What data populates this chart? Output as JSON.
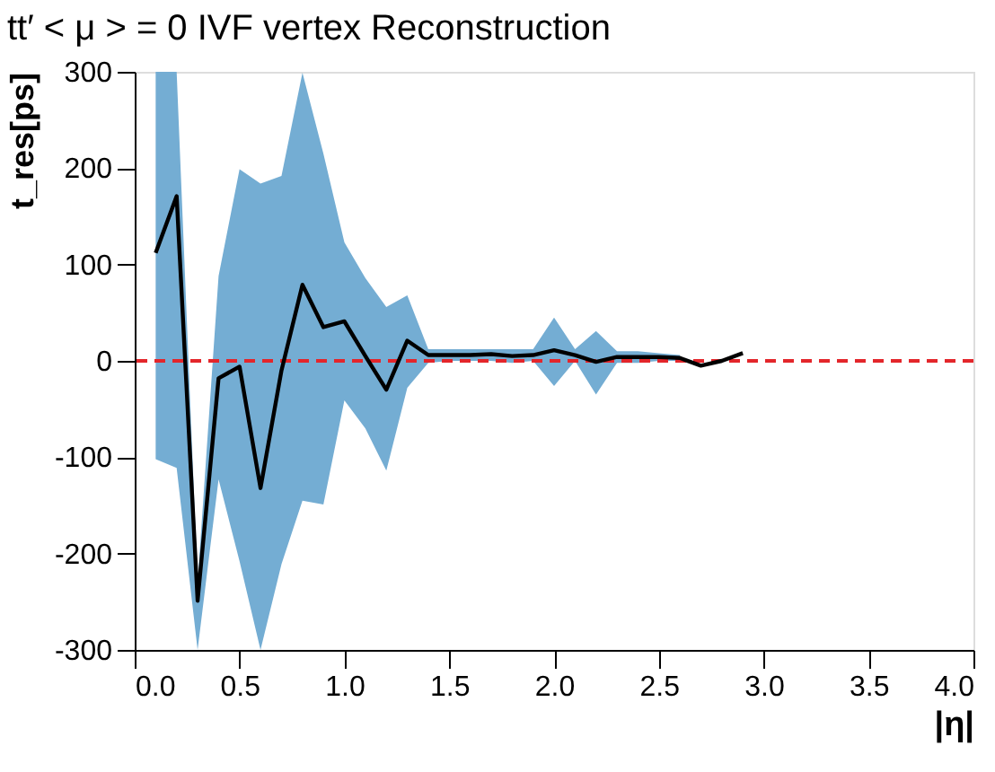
{
  "chart_data": {
    "type": "line",
    "title": "tt′ < μ > = 0 IVF vertex Reconstruction",
    "xlabel": "|η|",
    "ylabel": "t_res[ps]",
    "x": [
      0.1,
      0.2,
      0.3,
      0.4,
      0.5,
      0.6,
      0.7,
      0.8,
      0.9,
      1.0,
      1.1,
      1.2,
      1.3,
      1.4,
      1.5,
      1.6,
      1.7,
      1.8,
      1.9,
      2.0,
      2.1,
      2.2,
      2.3,
      2.4,
      2.5,
      2.6,
      2.7,
      2.8,
      2.9
    ],
    "series": [
      {
        "color": "#000000",
        "values": [
          112,
          171,
          -249,
          -18,
          -6,
          -132,
          -10,
          79,
          35,
          41,
          5,
          -30,
          21,
          6,
          6,
          6,
          7,
          5,
          6,
          11,
          6,
          -1,
          4,
          4,
          4,
          3,
          -5,
          0,
          8
        ],
        "lower": [
          -102,
          -111,
          -300,
          -123,
          -208,
          -300,
          -211,
          -145,
          -149,
          -41,
          -70,
          -114,
          -28,
          -2,
          0,
          0,
          0,
          -2,
          0,
          -26,
          0,
          -35,
          -2,
          -2,
          0,
          0,
          null,
          null,
          null
        ],
        "upper": [
          300,
          300,
          -230,
          88,
          199,
          184,
          192,
          299,
          215,
          123,
          86,
          56,
          68,
          12,
          12,
          12,
          12,
          12,
          12,
          45,
          12,
          31,
          10,
          10,
          8,
          6,
          null,
          null,
          null
        ]
      }
    ],
    "ref_lines": [
      {
        "axis": "y",
        "value": 0,
        "color": "#e3262b",
        "line_style": "dashed"
      }
    ],
    "xlim": [
      0.0,
      4.0
    ],
    "xticks": [
      {
        "value": 0,
        "label": "0.0"
      },
      {
        "value": 0.5,
        "label": "0.5"
      },
      {
        "value": 1,
        "label": "1.0"
      },
      {
        "value": 1.5,
        "label": "1.5"
      },
      {
        "value": 2,
        "label": "2.0"
      },
      {
        "value": 2.5,
        "label": "2.5"
      },
      {
        "value": 3,
        "label": "3.0"
      },
      {
        "value": 3.5,
        "label": "3.5"
      },
      {
        "value": 4,
        "label": "4.0"
      }
    ],
    "ylim": [
      -300,
      300
    ],
    "yticks": [
      -300,
      -200,
      -100,
      0,
      100,
      200,
      300
    ],
    "grid": false,
    "marker": "none",
    "line_style": "solid"
  }
}
